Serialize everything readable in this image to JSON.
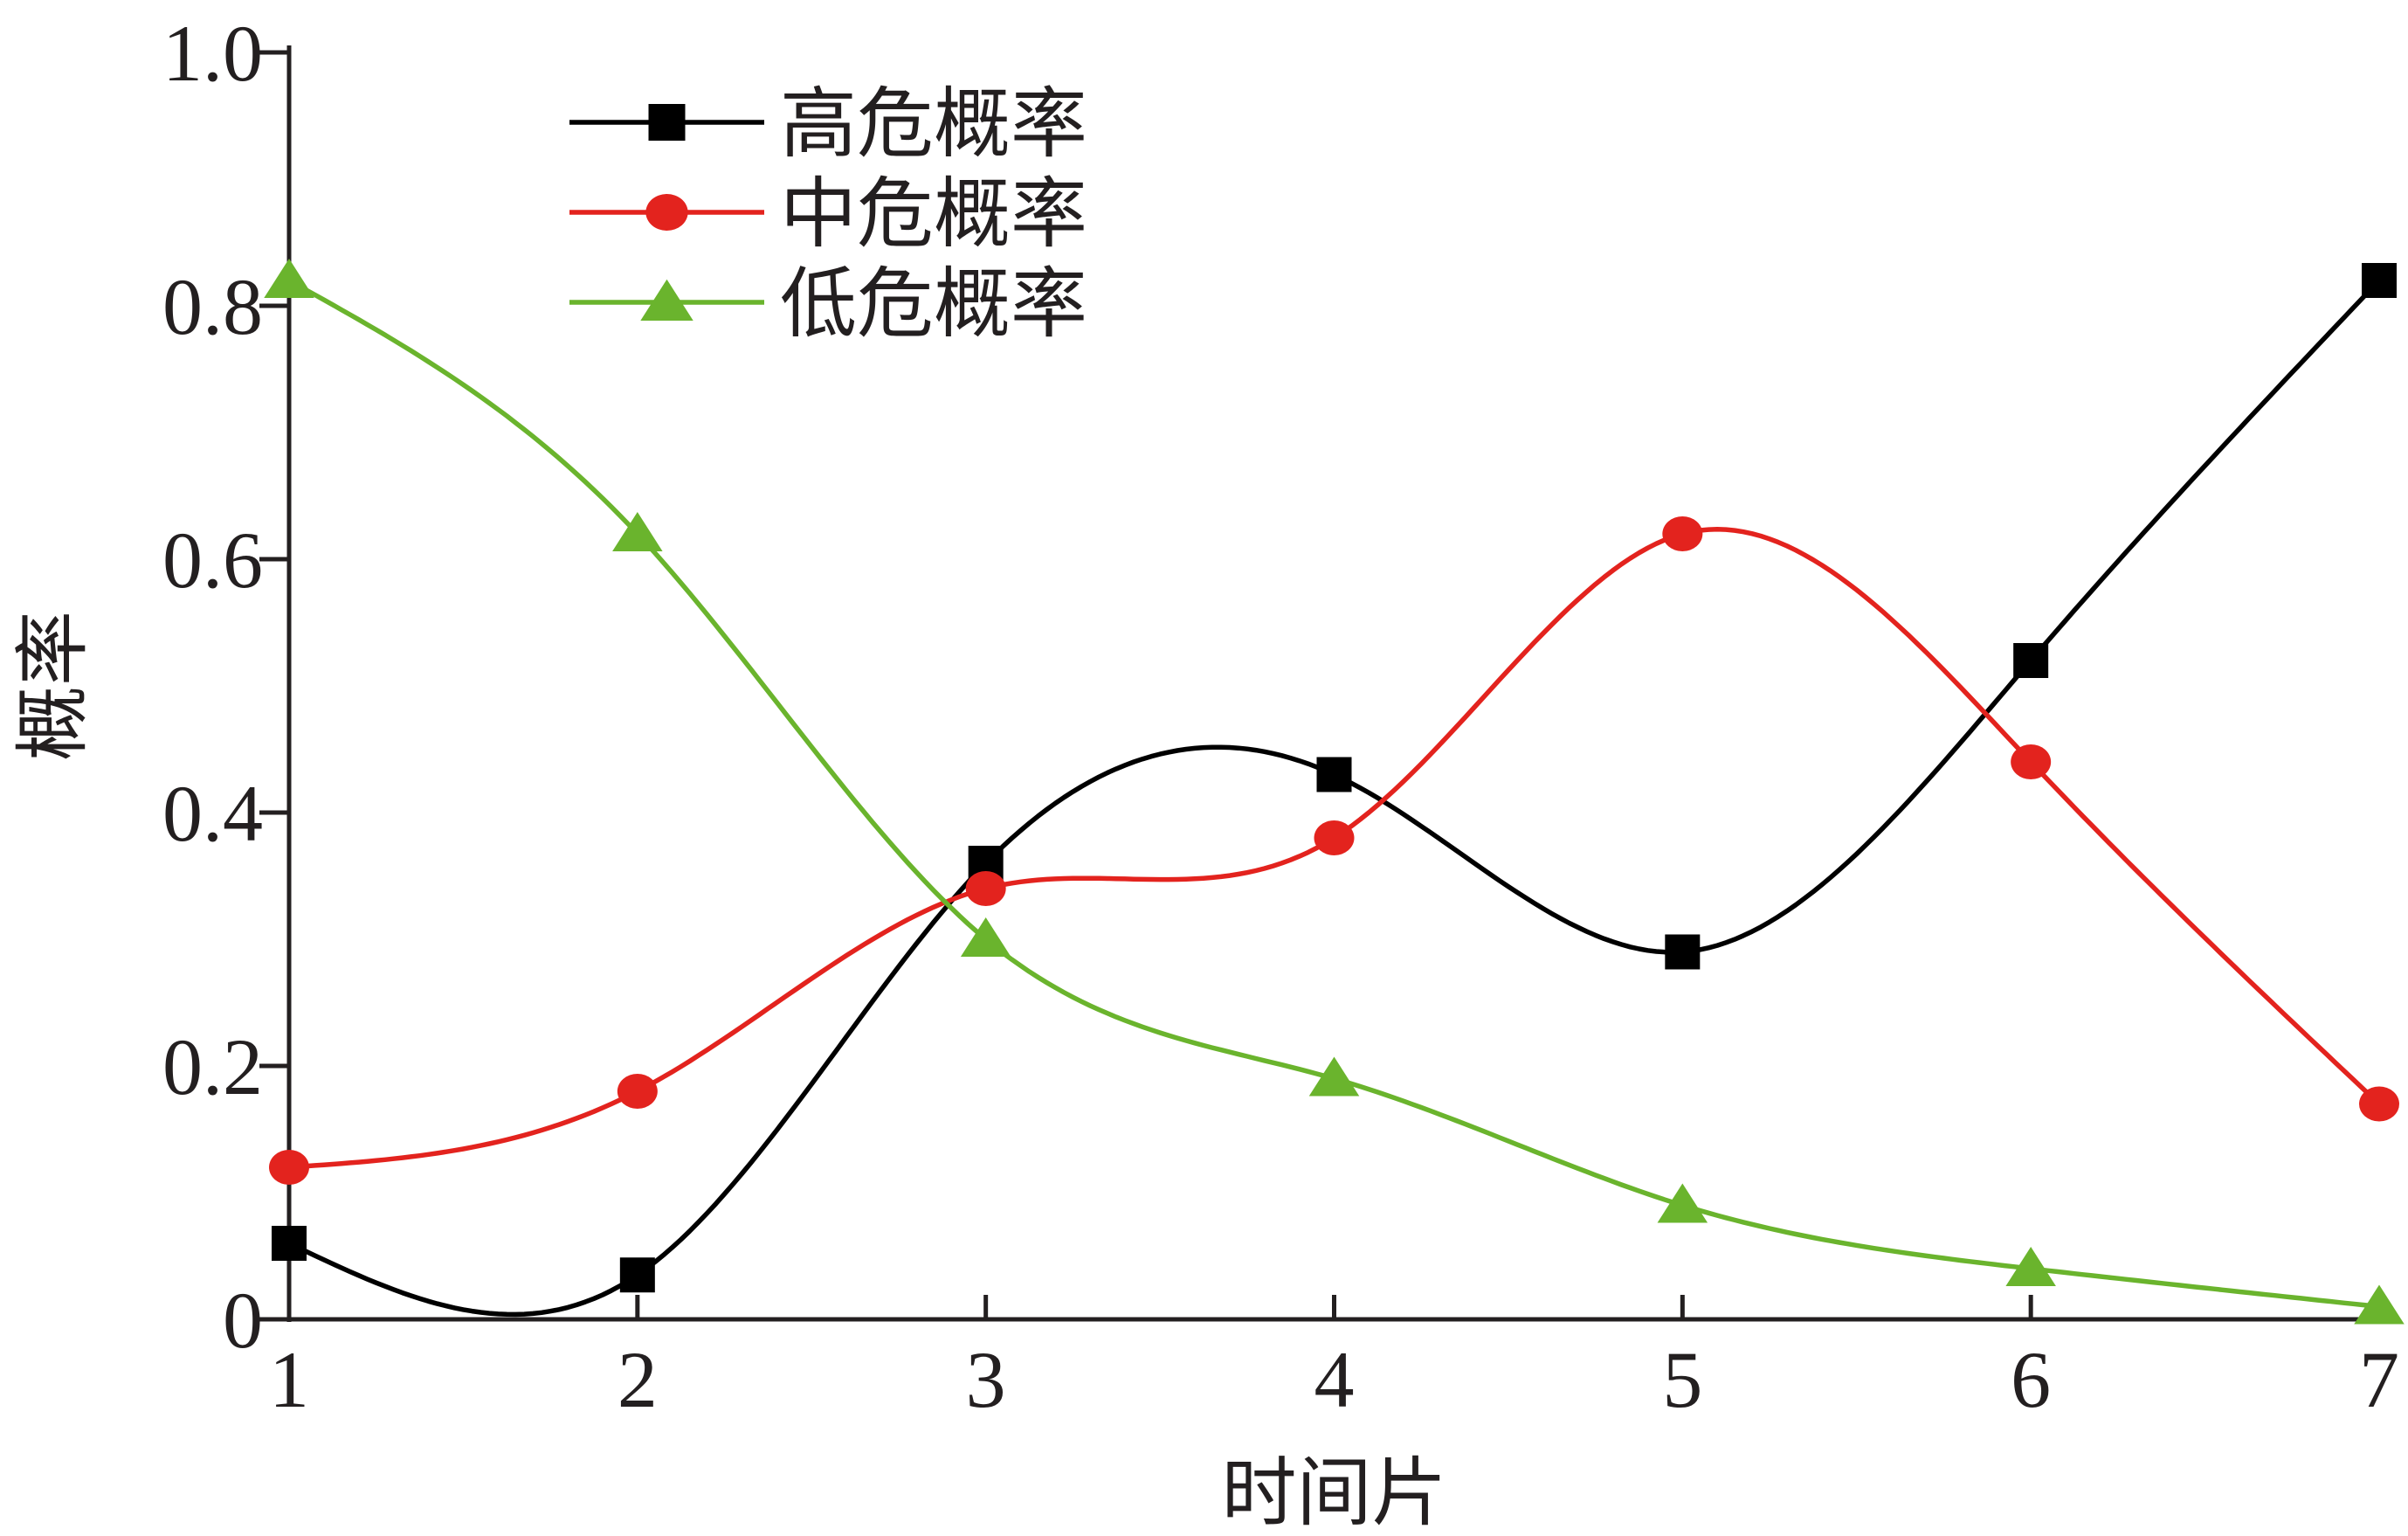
{
  "chart_data": {
    "type": "line",
    "title": "",
    "xlabel": "时间片",
    "ylabel": "概率",
    "x": [
      1,
      2,
      3,
      4,
      5,
      6,
      7
    ],
    "xlim": [
      1,
      7
    ],
    "ylim": [
      0,
      1.0
    ],
    "xticks": [
      1,
      2,
      3,
      4,
      5,
      6,
      7
    ],
    "yticks": [
      0,
      0.2,
      0.4,
      0.6,
      0.8,
      1.0
    ],
    "ytick_labels": [
      "0",
      "0.2",
      "0.4",
      "0.6",
      "0.8",
      "1.0"
    ],
    "grid": false,
    "legend_position": "top-center",
    "smooth": true,
    "series": [
      {
        "name": "高危概率",
        "color": "#000000",
        "marker": "square",
        "values": [
          0.06,
          0.035,
          0.36,
          0.43,
          0.29,
          0.52,
          0.82
        ]
      },
      {
        "name": "中危概率",
        "color": "#e3231e",
        "marker": "circle",
        "values": [
          0.12,
          0.18,
          0.34,
          0.38,
          0.62,
          0.44,
          0.17
        ]
      },
      {
        "name": "低危概率",
        "color": "#6ab42d",
        "marker": "triangle",
        "values": [
          0.82,
          0.62,
          0.3,
          0.19,
          0.09,
          0.04,
          0.01
        ]
      }
    ]
  }
}
